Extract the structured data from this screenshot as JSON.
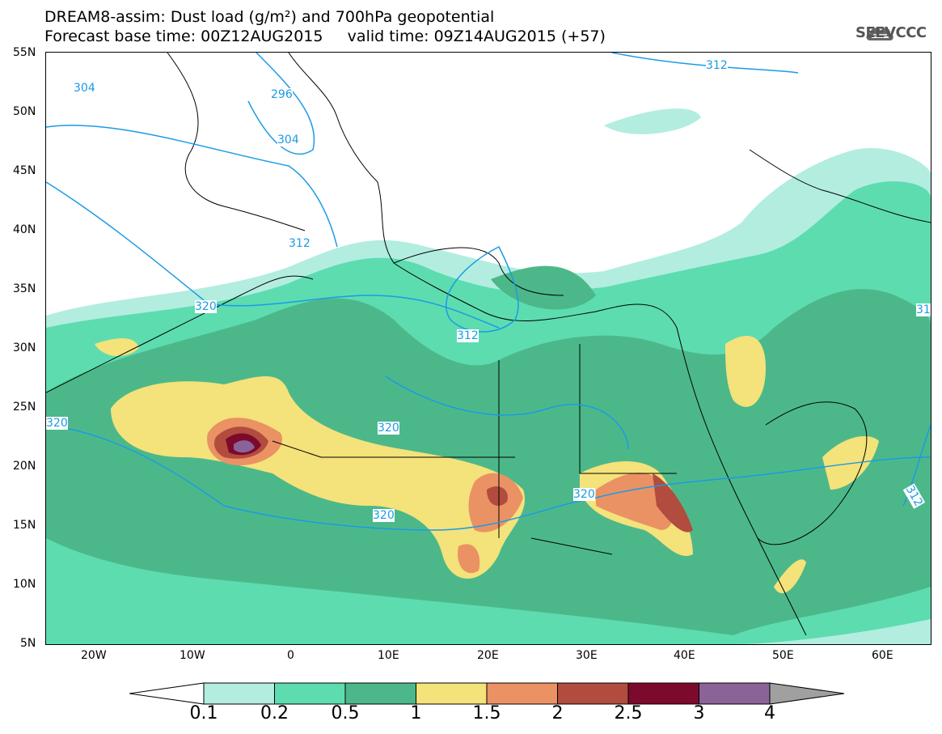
{
  "title": {
    "line1": "DREAM8-assim: Dust load (g/m²) and 700hPa geopotential",
    "line2": "Forecast base time: 00Z12AUG2015     valid time: 09Z14AUG2015 (+57)"
  },
  "logo": {
    "text": "SEEVCCC",
    "icon": "cloud-icon"
  },
  "axes": {
    "lat_labels": [
      "55N",
      "50N",
      "45N",
      "40N",
      "35N",
      "30N",
      "25N",
      "20N",
      "15N",
      "10N",
      "5N"
    ],
    "lon_labels": [
      "20W",
      "10W",
      "0",
      "10E",
      "20E",
      "30E",
      "40E",
      "50E",
      "60E"
    ]
  },
  "contour_labels": {
    "c304a": "304",
    "c296": "296",
    "c304b": "304",
    "c312a": "312",
    "c312b": "312",
    "c312c": "312",
    "c312d": "312",
    "c320a": "320",
    "c320b": "320",
    "c320c": "320",
    "c320d": "320",
    "c320e": "320",
    "c31": "31"
  },
  "colorbar": {
    "labels": [
      "0.1",
      "0.2",
      "0.5",
      "1",
      "1.5",
      "2",
      "2.5",
      "3",
      "4"
    ],
    "colors": [
      "#b2ede0",
      "#5ddcb0",
      "#4cb88a",
      "#f4e27a",
      "#ea9264",
      "#b14c3e",
      "#7c0a2c",
      "#8a6498"
    ]
  },
  "colors": {
    "land_outline": "#000000",
    "geopotential_line": "#1a9be6",
    "over_arrow": "#a0a0a0"
  }
}
